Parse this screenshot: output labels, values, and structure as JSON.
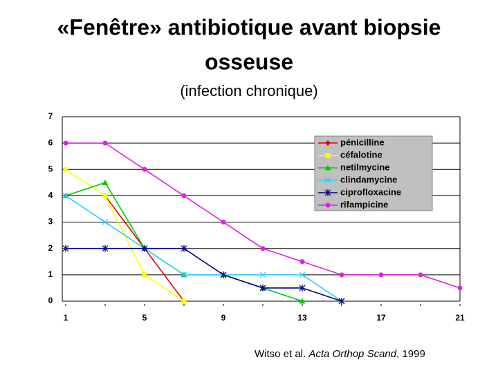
{
  "title": "«Fenêtre» antibiotique avant biopsie",
  "title_line2": "osseuse",
  "subtitle": "(infection chronique)",
  "chart_data": {
    "type": "line",
    "x": [
      1,
      3,
      5,
      7,
      9,
      11,
      13,
      15,
      17,
      19,
      21
    ],
    "xlim": [
      1,
      21
    ],
    "xticks": [
      1,
      5,
      9,
      13,
      17,
      21
    ],
    "ylim": [
      0,
      7
    ],
    "yticks": [
      0,
      1,
      2,
      3,
      4,
      5,
      6,
      7
    ],
    "grid": true,
    "legend": "upper right",
    "series": [
      {
        "name": "pénicilline",
        "color": "#e00000",
        "marker": "diamond",
        "values": [
          null,
          4,
          2,
          0,
          null,
          null,
          null,
          null,
          null,
          null,
          null
        ]
      },
      {
        "name": "céfalotine",
        "color": "#ffff00",
        "marker": "square",
        "values": [
          5,
          4,
          1,
          0,
          null,
          null,
          null,
          null,
          null,
          null,
          null
        ]
      },
      {
        "name": "netilmycine",
        "color": "#00cc00",
        "marker": "triangle",
        "values": [
          4,
          4.5,
          2,
          1,
          1,
          0.5,
          0,
          null,
          null,
          null,
          null
        ]
      },
      {
        "name": "clindamycine",
        "color": "#33ccff",
        "marker": "x",
        "values": [
          4,
          3,
          2,
          1,
          1,
          1,
          1,
          0,
          null,
          null,
          null
        ]
      },
      {
        "name": "ciprofloxacine",
        "color": "#000080",
        "marker": "star",
        "values": [
          2,
          2,
          2,
          2,
          1,
          0.5,
          0.5,
          0,
          null,
          null,
          null
        ]
      },
      {
        "name": "rifampicine",
        "color": "#e020e0",
        "marker": "circle",
        "values": [
          6,
          6,
          5,
          4,
          3,
          2,
          1.5,
          1,
          1,
          1,
          0.5
        ]
      }
    ]
  },
  "citation": {
    "authors": "Witso et al. ",
    "journal": "Acta Orthop Scand",
    "rest": ", 1999"
  }
}
